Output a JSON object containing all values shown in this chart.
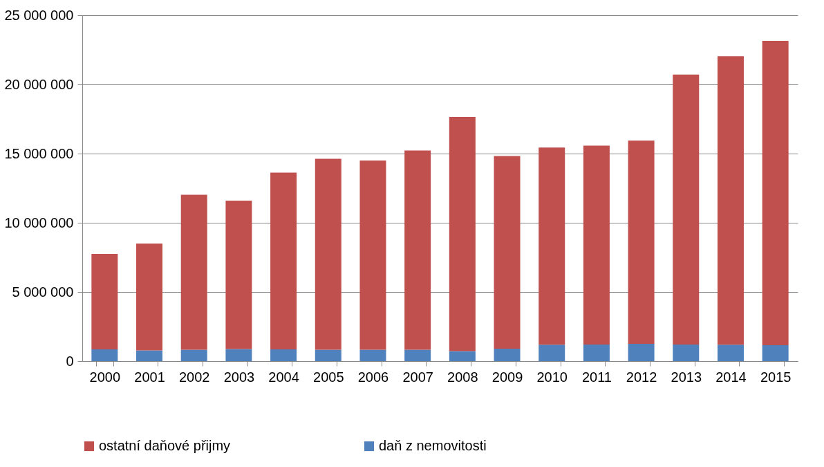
{
  "chart_data": {
    "type": "bar",
    "stacked": true,
    "categories": [
      "2000",
      "2001",
      "2002",
      "2003",
      "2004",
      "2005",
      "2006",
      "2007",
      "2008",
      "2009",
      "2010",
      "2011",
      "2012",
      "2013",
      "2014",
      "2015"
    ],
    "series": [
      {
        "name": "daň z nemovitosti",
        "color": "#4f81bd",
        "values": [
          850000,
          770000,
          830000,
          880000,
          850000,
          830000,
          830000,
          830000,
          720000,
          900000,
          1190000,
          1200000,
          1250000,
          1200000,
          1190000,
          1150000
        ]
      },
      {
        "name": "ostatní daňové přijmy",
        "color": "#c0504d",
        "values": [
          6900000,
          7730000,
          11190000,
          10720000,
          12780000,
          13790000,
          13670000,
          14390000,
          16930000,
          13930000,
          14250000,
          14380000,
          14690000,
          19510000,
          20850000,
          22000000
        ]
      }
    ],
    "ylim": [
      0,
      25000000
    ],
    "yticks": [
      {
        "value": 0,
        "label": "0"
      },
      {
        "value": 5000000,
        "label": "5 000 000"
      },
      {
        "value": 10000000,
        "label": "10 000 000"
      },
      {
        "value": 15000000,
        "label": "15 000 000"
      },
      {
        "value": 20000000,
        "label": "20 000 000"
      },
      {
        "value": 25000000,
        "label": "25 000 000"
      }
    ],
    "grid": "y",
    "legend": "bottom"
  }
}
